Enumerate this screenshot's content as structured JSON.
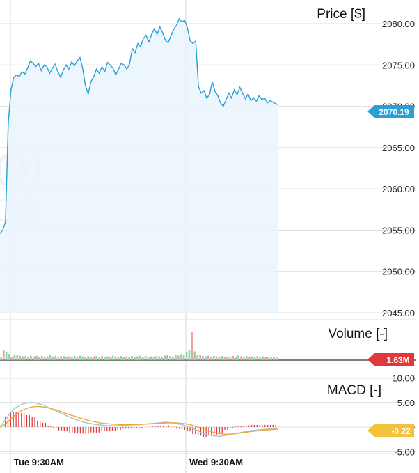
{
  "chart_data": [
    {
      "type": "area",
      "title": "Price [$]",
      "ylim": [
        2042.5,
        2082.5
      ],
      "yticks": [
        "2045.00",
        "2050.00",
        "2055.00",
        "2060.00",
        "2065.00",
        "2070.00",
        "2075.00",
        "2080.00"
      ],
      "xticks": [
        "Tue 9:30AM",
        "Wed 9:30AM"
      ],
      "last_value": "2070.19",
      "colors": {
        "line": "#2a9fd6",
        "fill": "#eaf4fc",
        "badge": "#2a9fd6"
      },
      "series": [
        {
          "values": [
            2054.6,
            2055.0,
            2056.0,
            2068.0,
            2072.0,
            2073.5,
            2073.8,
            2073.6,
            2074.2,
            2073.9,
            2074.6,
            2075.5,
            2075.2,
            2074.8,
            2075.2,
            2074.3,
            2075.0,
            2074.8,
            2074.0,
            2074.6,
            2075.1,
            2074.2,
            2073.5,
            2074.4,
            2075.0,
            2074.5,
            2075.4,
            2074.9,
            2075.5,
            2075.9,
            2074.6,
            2072.5,
            2071.5,
            2073.0,
            2073.6,
            2074.5,
            2074.0,
            2074.8,
            2074.2,
            2075.3,
            2075.0,
            2074.6,
            2073.8,
            2074.5,
            2075.2,
            2075.0,
            2074.5,
            2075.1,
            2077.0,
            2076.5,
            2077.6,
            2077.2,
            2078.2,
            2078.6,
            2077.8,
            2078.7,
            2079.4,
            2078.7,
            2079.6,
            2078.9,
            2078.0,
            2077.7,
            2078.5,
            2079.3,
            2079.8,
            2080.6,
            2080.2,
            2080.4,
            2079.5,
            2077.9,
            2077.6,
            2077.9,
            2072.4,
            2071.6,
            2071.9,
            2071.0,
            2071.4,
            2073.0,
            2071.8,
            2071.3,
            2070.4,
            2070.0,
            2070.8,
            2071.6,
            2071.0,
            2072.0,
            2071.4,
            2072.3,
            2071.6,
            2070.9,
            2071.5,
            2070.7,
            2071.0,
            2070.6,
            2071.3,
            2070.8,
            2071.0,
            2070.4,
            2070.7,
            2070.5,
            2070.3,
            2070.19
          ]
        }
      ]
    },
    {
      "type": "bar",
      "title": "Volume [-]",
      "last_value": "1.63M",
      "colors": {
        "up": "#8fd6a8",
        "down": "#f0a0a0",
        "badge": "#e0383b"
      },
      "series": [
        {
          "values": [
            0.15,
            0.6,
            0.45,
            0.35,
            0.2,
            0.3,
            0.28,
            0.25,
            0.22,
            0.24,
            0.2,
            0.26,
            0.22,
            0.25,
            0.18,
            0.24,
            0.2,
            0.22,
            0.28,
            0.2,
            0.24,
            0.18,
            0.22,
            0.25,
            0.2,
            0.22,
            0.18,
            0.24,
            0.2,
            0.26,
            0.22,
            0.2,
            0.24,
            0.18,
            0.22,
            0.25,
            0.2,
            0.24,
            0.18,
            0.22,
            0.2,
            0.26,
            0.22,
            0.2,
            0.24,
            0.2,
            0.22,
            0.18,
            0.24,
            0.2,
            0.22,
            0.25,
            0.2,
            0.24,
            0.18,
            0.22,
            0.2,
            0.24,
            0.22,
            0.2,
            0.26,
            0.28,
            0.24,
            0.22,
            0.3,
            0.26,
            0.35,
            0.28,
            0.45,
            0.6,
            1.6,
            0.5,
            0.3,
            0.28,
            0.24,
            0.22,
            0.26,
            0.2,
            0.24,
            0.22,
            0.2,
            0.24,
            0.18,
            0.22,
            0.2,
            0.24,
            0.2,
            0.3,
            0.22,
            0.2,
            0.24,
            0.18,
            0.22,
            0.2,
            0.24,
            0.2,
            0.22,
            0.18,
            0.2,
            0.18,
            0.16,
            0.15
          ]
        }
      ]
    },
    {
      "type": "line",
      "title": "MACD [-]",
      "ylim": [
        -6.5,
        11.0
      ],
      "yticks": [
        "-5.00",
        "0.00",
        "5.00",
        "10.00"
      ],
      "last_value": "-0.22",
      "colors": {
        "macd": "#a7bfd8",
        "signal": "#f0a830",
        "hist_pos": "#e0383b",
        "hist_neg": "#e0383b",
        "badge": "#f3c23c"
      },
      "series": [
        {
          "name": "",
          "values": [
            0.0,
            1.5,
            3.0,
            4.0,
            4.6,
            4.9,
            5.0,
            4.8,
            4.5,
            4.0,
            3.5,
            3.0,
            2.5,
            2.0,
            1.6,
            1.2,
            0.9,
            0.7,
            0.5,
            0.4,
            0.3,
            0.25,
            0.3,
            0.35,
            0.4,
            0.45,
            0.5,
            0.6,
            0.7,
            0.8,
            0.9,
            1.0,
            0.9,
            0.7,
            0.5,
            0.2,
            -0.3,
            -0.8,
            -1.3,
            -1.6,
            -1.8,
            -1.9,
            -1.7,
            -1.5,
            -1.3,
            -1.1,
            -0.9,
            -0.7,
            -0.6,
            -0.5,
            -0.4,
            -0.3,
            -0.22
          ]
        },
        {
          "name": "",
          "values": [
            0.0,
            0.6,
            1.6,
            2.6,
            3.3,
            3.8,
            4.1,
            4.2,
            4.1,
            3.9,
            3.6,
            3.3,
            2.9,
            2.5,
            2.2,
            1.8,
            1.5,
            1.2,
            1.0,
            0.8,
            0.7,
            0.6,
            0.55,
            0.5,
            0.5,
            0.52,
            0.55,
            0.6,
            0.65,
            0.7,
            0.78,
            0.85,
            0.88,
            0.85,
            0.75,
            0.6,
            0.35,
            0.0,
            -0.4,
            -0.8,
            -1.1,
            -1.35,
            -1.45,
            -1.45,
            -1.35,
            -1.2,
            -1.05,
            -0.9,
            -0.8,
            -0.7,
            -0.6,
            -0.5,
            -0.4
          ]
        }
      ]
    }
  ]
}
